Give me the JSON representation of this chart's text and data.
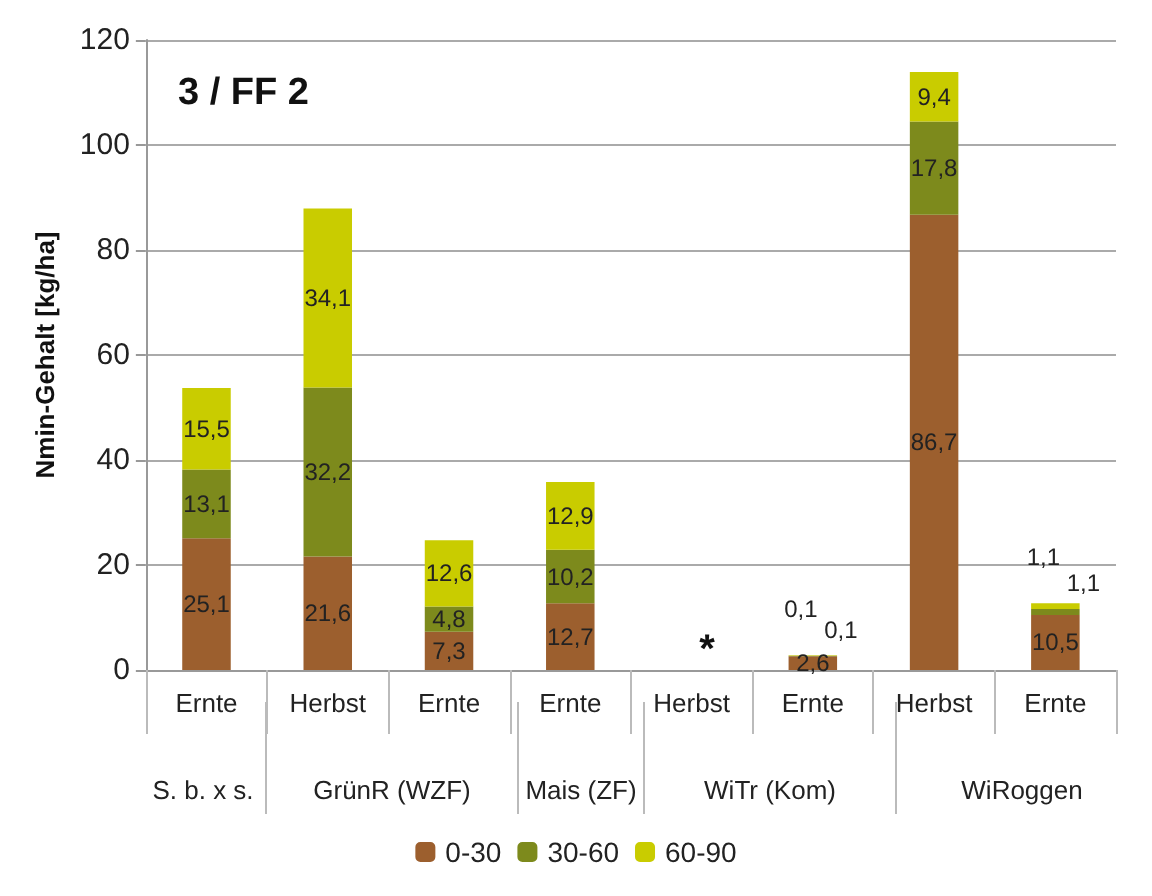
{
  "chart_data": {
    "type": "bar",
    "stacked": true,
    "title": "3 / FF 2",
    "ylabel": "Nmin-Gehalt [kg/ha]",
    "categories": [
      "Ernte",
      "Herbst",
      "Ernte",
      "Ernte",
      "Herbst",
      "Ernte",
      "Herbst",
      "Ernte"
    ],
    "series": [
      {
        "name": "0-30",
        "color": "#9c5f2e",
        "values": [
          25.1,
          21.6,
          7.3,
          12.7,
          null,
          2.6,
          86.7,
          10.5
        ],
        "value_labels": [
          "25,1",
          "21,6",
          "7,3",
          "12,7",
          null,
          "2,6",
          "86,7",
          "10,5"
        ]
      },
      {
        "name": "30-60",
        "color": "#7d8a1c",
        "values": [
          13.1,
          32.2,
          4.8,
          10.2,
          null,
          0.1,
          17.8,
          1.1
        ],
        "value_labels": [
          "13,1",
          "32,2",
          "4,8",
          "10,2",
          null,
          "0,1",
          "17,8",
          "1,1"
        ]
      },
      {
        "name": "60-90",
        "color": "#c9cc00",
        "values": [
          15.5,
          34.1,
          12.6,
          12.9,
          null,
          0.1,
          9.4,
          1.1
        ],
        "value_labels": [
          "15,5",
          "34,1",
          "12,6",
          "12,9",
          null,
          "0,1",
          "9,4",
          "1,1"
        ]
      }
    ],
    "annotations": [
      "*",
      "S. b. x s.",
      "GrünR (WZF)",
      "Mais (ZF)",
      "WiTr (Kom)",
      "WiRoggen"
    ],
    "ylim": [
      0,
      120
    ],
    "yticks": [
      0,
      20,
      40,
      60,
      80,
      100,
      120
    ],
    "grid": "y",
    "legend": "bottom"
  }
}
